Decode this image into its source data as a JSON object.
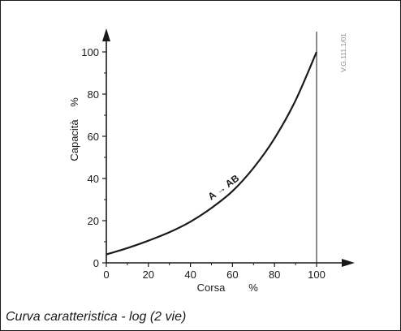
{
  "chart_data": {
    "type": "line",
    "xlabel": "Corsa",
    "xunit": "%",
    "ylabel": "Capacità",
    "yunit": "%",
    "xlim": [
      0,
      100
    ],
    "ylim": [
      0,
      100
    ],
    "x_ticks": [
      0,
      20,
      40,
      60,
      80,
      100
    ],
    "y_ticks": [
      0,
      20,
      40,
      60,
      80,
      100
    ],
    "series": [
      {
        "name": "A → AB",
        "x": [
          0,
          10,
          20,
          30,
          40,
          50,
          60,
          70,
          80,
          90,
          100
        ],
        "y": [
          4,
          7,
          10.5,
          14.5,
          19.5,
          26,
          34,
          45,
          59,
          77,
          100
        ]
      }
    ],
    "grid": false,
    "legend": "none",
    "reference_code": "V.G.111.1/01",
    "caption": "Curva caratteristica - log (2 vie)"
  }
}
